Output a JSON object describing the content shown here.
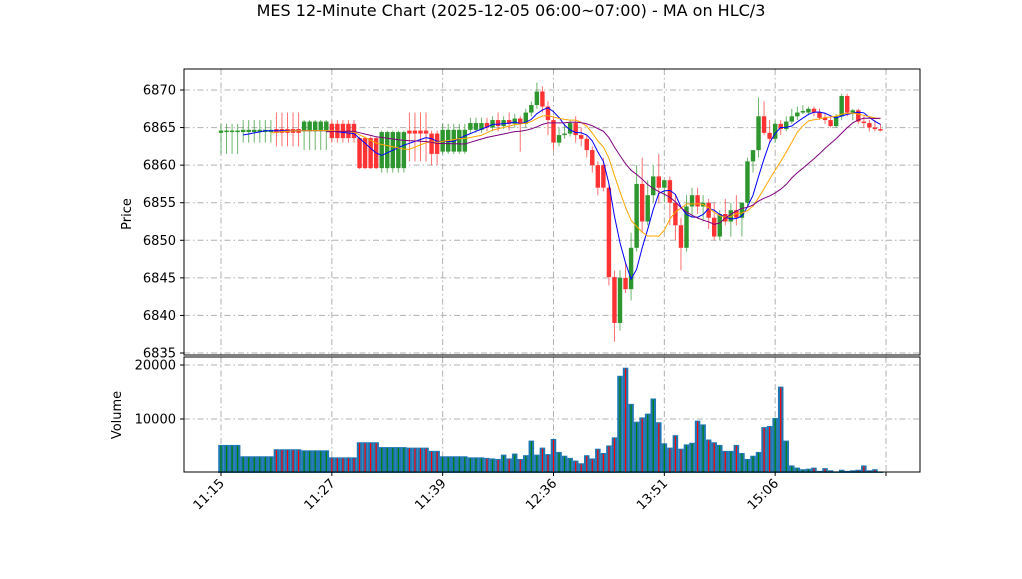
{
  "chart_data": {
    "type": "candlestick",
    "title": "MES 12-Minute Chart (2025-12-05 06:00~07:00) - MA on HLC/3",
    "price_panel": {
      "ylabel": "Price",
      "ylim": [
        6834.5,
        6872.5
      ],
      "yticks": [
        6835,
        6840,
        6845,
        6850,
        6855,
        6860,
        6865,
        6870
      ],
      "grid": true
    },
    "volume_panel": {
      "ylabel": "Volume",
      "ylim": [
        0,
        20800
      ],
      "yticks": [
        10000,
        20000
      ],
      "grid": true
    },
    "xticks": [
      {
        "index": 0,
        "label": "11:15"
      },
      {
        "index": 20,
        "label": "11:27"
      },
      {
        "index": 40,
        "label": "11:39"
      },
      {
        "index": 60,
        "label": "12:36"
      },
      {
        "index": 80,
        "label": "13:51"
      },
      {
        "index": 100,
        "label": "15:06"
      },
      {
        "index": 120,
        "label": ""
      }
    ],
    "colors": {
      "up": "#2e962e",
      "down": "#ff3333",
      "volume": "#1f77b4",
      "ma_fast": "#0000ff",
      "ma_mid": "#ffa500",
      "ma_slow": "#800080",
      "grid": "#b0b0b0"
    },
    "ohlc": [
      [
        6864.3,
        6865.5,
        6861.5,
        6864.6
      ],
      [
        6864.4,
        6865.5,
        6861.5,
        6864.6
      ],
      [
        6864.4,
        6865.5,
        6861.5,
        6864.6
      ],
      [
        6864.4,
        6865.5,
        6861.5,
        6864.6
      ],
      [
        6864.4,
        6866,
        6863,
        6864.7
      ],
      [
        6864.4,
        6866,
        6863,
        6864.7
      ],
      [
        6864.4,
        6866,
        6863,
        6864.7
      ],
      [
        6864.4,
        6866,
        6863,
        6864.7
      ],
      [
        6864.4,
        6866,
        6863,
        6864.7
      ],
      [
        6864.4,
        6866,
        6863,
        6864.7
      ],
      [
        6864.8,
        6867,
        6862.5,
        6864.3
      ],
      [
        6864.8,
        6867,
        6862.5,
        6864.3
      ],
      [
        6864.8,
        6867,
        6862.5,
        6864.3
      ],
      [
        6864.8,
        6867,
        6862.5,
        6864.3
      ],
      [
        6864.8,
        6867,
        6862.5,
        6864.3
      ],
      [
        6864.5,
        6866,
        6862,
        6865.8
      ],
      [
        6864.5,
        6866,
        6862,
        6865.8
      ],
      [
        6864.5,
        6866,
        6862,
        6865.8
      ],
      [
        6864.5,
        6866,
        6862,
        6865.8
      ],
      [
        6864.5,
        6866,
        6862,
        6865.8
      ],
      [
        6865.5,
        6866,
        6863,
        6863.6
      ],
      [
        6865.5,
        6866,
        6863,
        6863.6
      ],
      [
        6865.5,
        6866,
        6863,
        6863.6
      ],
      [
        6865.5,
        6866,
        6863,
        6863.6
      ],
      [
        6865.5,
        6866,
        6863,
        6863.6
      ],
      [
        6863.6,
        6863.8,
        6859.5,
        6859.6
      ],
      [
        6863.6,
        6863.8,
        6859.5,
        6859.6
      ],
      [
        6863.6,
        6863.8,
        6859.5,
        6859.6
      ],
      [
        6863.6,
        6863.8,
        6859.5,
        6859.6
      ],
      [
        6859.6,
        6864.6,
        6859,
        6864.4
      ],
      [
        6859.6,
        6864.6,
        6859,
        6864.4
      ],
      [
        6859.6,
        6864.6,
        6859,
        6864.4
      ],
      [
        6859.6,
        6864.6,
        6859,
        6864.4
      ],
      [
        6859.6,
        6864.6,
        6859,
        6864.4
      ],
      [
        6864.6,
        6867,
        6860.5,
        6864.2
      ],
      [
        6864.6,
        6867,
        6860.5,
        6864.2
      ],
      [
        6864.6,
        6867,
        6860.5,
        6864.2
      ],
      [
        6864.6,
        6867,
        6860.5,
        6864.2
      ],
      [
        6864.2,
        6864.6,
        6860,
        6861.5
      ],
      [
        6864.2,
        6864.6,
        6860,
        6861.5
      ],
      [
        6861.8,
        6865.5,
        6861.5,
        6864.7
      ],
      [
        6861.8,
        6865.5,
        6861.5,
        6864.7
      ],
      [
        6861.8,
        6865.5,
        6861.5,
        6864.7
      ],
      [
        6861.8,
        6865.5,
        6861.5,
        6864.7
      ],
      [
        6861.8,
        6865.5,
        6861.5,
        6864.7
      ],
      [
        6864.7,
        6866.3,
        6864.3,
        6865.6
      ],
      [
        6864.7,
        6866.3,
        6864.3,
        6865.6
      ],
      [
        6864.7,
        6866.3,
        6864.3,
        6865.6
      ],
      [
        6865.6,
        6866.3,
        6864.5,
        6865
      ],
      [
        6865,
        6866.5,
        6864.5,
        6866
      ],
      [
        6866,
        6867,
        6864.5,
        6865.2
      ],
      [
        6865.2,
        6866.5,
        6864.8,
        6866
      ],
      [
        6866,
        6867,
        6864.6,
        6865.5
      ],
      [
        6865.5,
        6866.8,
        6865,
        6866.2
      ],
      [
        6866.2,
        6866.5,
        6861.8,
        6865.5
      ],
      [
        6865.5,
        6867.5,
        6865,
        6867
      ],
      [
        6867,
        6868.5,
        6866.5,
        6868
      ],
      [
        6868,
        6871,
        6867.5,
        6869.8
      ],
      [
        6869.8,
        6870.5,
        6867,
        6867.8
      ],
      [
        6867.8,
        6868.5,
        6864,
        6866
      ],
      [
        6866,
        6866.5,
        6862,
        6863
      ],
      [
        6863,
        6865,
        6862.5,
        6864
      ],
      [
        6864,
        6865.5,
        6863.5,
        6864.2
      ],
      [
        6864.2,
        6866,
        6863.8,
        6865.6
      ],
      [
        6865.6,
        6866.5,
        6863,
        6864
      ],
      [
        6864,
        6865,
        6862.5,
        6863.5
      ],
      [
        6863.5,
        6864,
        6861,
        6862
      ],
      [
        6862,
        6862.5,
        6859,
        6860
      ],
      [
        6860,
        6860.5,
        6856,
        6857
      ],
      [
        6860,
        6861,
        6856.5,
        6857
      ],
      [
        6857,
        6857.5,
        6844,
        6845.1
      ],
      [
        6845.1,
        6846,
        6836.5,
        6839
      ],
      [
        6839,
        6846,
        6838,
        6845
      ],
      [
        6845,
        6847,
        6843,
        6843.5
      ],
      [
        6843.5,
        6851,
        6842,
        6849
      ],
      [
        6849,
        6860,
        6848.5,
        6857.5
      ],
      [
        6857.5,
        6861,
        6851,
        6852.5
      ],
      [
        6852.5,
        6858,
        6852,
        6856
      ],
      [
        6856,
        6860,
        6855,
        6858.5
      ],
      [
        6858.5,
        6861.5,
        6855,
        6857
      ],
      [
        6857,
        6858,
        6855,
        6858
      ],
      [
        6858,
        6858.5,
        6852,
        6855
      ],
      [
        6855,
        6856,
        6850,
        6852
      ],
      [
        6852,
        6853,
        6846,
        6849
      ],
      [
        6849,
        6856,
        6848.5,
        6854.5
      ],
      [
        6854.5,
        6857,
        6853,
        6856
      ],
      [
        6856,
        6857,
        6853.5,
        6854.5
      ],
      [
        6854.5,
        6856,
        6852.5,
        6855
      ],
      [
        6855,
        6855.5,
        6851.5,
        6853
      ],
      [
        6853,
        6855,
        6850,
        6850.5
      ],
      [
        6850.5,
        6854,
        6850,
        6853.5
      ],
      [
        6853.5,
        6855.5,
        6852,
        6852.5
      ],
      [
        6852.5,
        6855,
        6850.5,
        6854
      ],
      [
        6854,
        6856,
        6852,
        6853
      ],
      [
        6853,
        6855,
        6850.5,
        6855
      ],
      [
        6855,
        6861,
        6854.5,
        6860.5
      ],
      [
        6860.5,
        6862,
        6859,
        6862
      ],
      [
        6862,
        6869,
        6861,
        6866.5
      ],
      [
        6866.5,
        6868.5,
        6864,
        6864.3
      ],
      [
        6864.3,
        6866,
        6863,
        6863.5
      ],
      [
        6863.5,
        6866,
        6863,
        6865.5
      ],
      [
        6865.5,
        6866,
        6864,
        6864.8
      ],
      [
        6864.8,
        6866.5,
        6864.5,
        6865.8
      ],
      [
        6865.8,
        6867.5,
        6865.5,
        6866.5
      ],
      [
        6866.5,
        6867.8,
        6866,
        6867
      ],
      [
        6867,
        6868,
        6866.8,
        6867.2
      ],
      [
        6867,
        6867.8,
        6866.8,
        6867.5
      ],
      [
        6867.5,
        6867.8,
        6866.5,
        6867
      ],
      [
        6867,
        6867.5,
        6866,
        6866.3
      ],
      [
        6866.3,
        6867,
        6865.5,
        6866
      ],
      [
        6866,
        6866.5,
        6865,
        6865.2
      ],
      [
        6865.2,
        6866.8,
        6865,
        6866.5
      ],
      [
        6866.5,
        6869.5,
        6866,
        6869.2
      ],
      [
        6869.2,
        6869.5,
        6866.5,
        6867
      ],
      [
        6867,
        6867.5,
        6866,
        6867.3
      ],
      [
        6867.3,
        6867.5,
        6865.5,
        6865.8
      ],
      [
        6865.8,
        6866.5,
        6865,
        6865.6
      ],
      [
        6865.6,
        6866,
        6864.5,
        6865
      ],
      [
        6865,
        6866,
        6864.5,
        6864.8
      ],
      [
        6864.8,
        6865.5,
        6864.5,
        6864.6
      ]
    ],
    "volume": [
      5200,
      5200,
      5200,
      5200,
      3100,
      3100,
      3100,
      3100,
      3100,
      3100,
      4400,
      4400,
      4400,
      4400,
      4400,
      4200,
      4200,
      4200,
      4200,
      4200,
      2900,
      2900,
      2900,
      2900,
      2900,
      5700,
      5700,
      5700,
      5700,
      4800,
      4800,
      4800,
      4800,
      4800,
      4700,
      4700,
      4700,
      4700,
      4100,
      4100,
      3100,
      3100,
      3100,
      3100,
      3100,
      2900,
      2900,
      2900,
      2800,
      2700,
      2600,
      3400,
      2700,
      3600,
      2600,
      3300,
      6000,
      3400,
      4700,
      3500,
      6300,
      3900,
      3200,
      2800,
      2300,
      1800,
      3300,
      2700,
      4500,
      3700,
      5100,
      6600,
      18000,
      19500,
      12800,
      9500,
      10300,
      11000,
      13800,
      9400,
      5500,
      4700,
      7000,
      4500,
      5300,
      5600,
      9700,
      9000,
      6200,
      5700,
      5200,
      4100,
      4100,
      5200,
      3700,
      2600,
      3200,
      3900,
      8500,
      8700,
      10200,
      16000,
      6000,
      1400,
      1000,
      700,
      800,
      1000,
      400,
      900,
      500,
      300,
      600,
      400,
      500,
      600,
      1400,
      500,
      700,
      300
    ]
  }
}
